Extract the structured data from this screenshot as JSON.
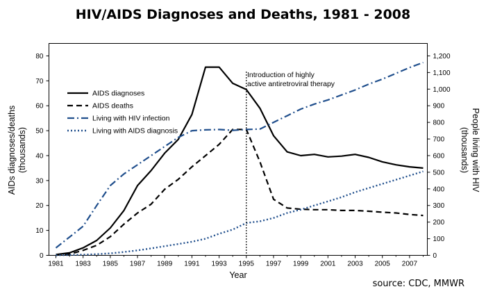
{
  "chart_data": {
    "type": "line",
    "title": "HIV/AIDS Diagnoses and Deaths, 1981 - 2008",
    "xlabel": "Year",
    "ylabel_left": [
      "AIDs diagnoses/deaths",
      "(thousands)"
    ],
    "ylabel_right": [
      "People living with HIV",
      "(thousands)"
    ],
    "x": [
      1981,
      1982,
      1983,
      1984,
      1985,
      1986,
      1987,
      1988,
      1989,
      1990,
      1991,
      1992,
      1993,
      1994,
      1995,
      1996,
      1997,
      1998,
      1999,
      2000,
      2001,
      2002,
      2003,
      2004,
      2005,
      2006,
      2007,
      2008
    ],
    "xlim": [
      1981,
      2008.5
    ],
    "ylim_left": [
      0,
      85
    ],
    "ylim_right": [
      0,
      1275
    ],
    "x_ticks": [
      "1981",
      "1983",
      "1985",
      "1987",
      "1989",
      "1991",
      "1993",
      "1995",
      "1997",
      "1999",
      "2001",
      "2003",
      "2005",
      "2007"
    ],
    "y_ticks_left": [
      "0",
      "10",
      "20",
      "30",
      "40",
      "50",
      "60",
      "70",
      "80"
    ],
    "y_ticks_right": [
      "0",
      "100",
      "200",
      "300",
      "400",
      "500",
      "600",
      "700",
      "800",
      "900",
      "1,000",
      "1,100",
      "1,200"
    ],
    "series": [
      {
        "name": "AIDS diagnoses",
        "axis": "left",
        "style": "solid",
        "color": "#000000",
        "values": [
          0.3,
          1,
          3,
          6,
          11,
          18,
          28,
          34,
          41,
          46.5,
          56.5,
          75.5,
          75.5,
          69,
          66.5,
          59,
          48,
          41.5,
          40,
          40.5,
          39.5,
          39.8,
          40.5,
          39.3,
          37.5,
          36.3,
          35.5,
          35
        ]
      },
      {
        "name": "AIDS deaths",
        "axis": "left",
        "style": "dashed",
        "color": "#000000",
        "values": [
          0.1,
          0.5,
          2,
          4,
          7.5,
          12.5,
          17,
          20.5,
          26.5,
          30.5,
          35.5,
          40,
          44.5,
          50.5,
          50.5,
          37.5,
          22.5,
          19,
          18.5,
          18.3,
          18.3,
          18,
          18,
          17.7,
          17.3,
          17,
          16.4,
          16
        ]
      },
      {
        "name": "Living with HIV infection",
        "axis": "right",
        "style": "dash-dot",
        "color": "#1f4e8c",
        "values": [
          45,
          110,
          175,
          300,
          420,
          490,
          545,
          600,
          655,
          710,
          750,
          755,
          757,
          752,
          757,
          760,
          800,
          840,
          880,
          910,
          935,
          965,
          995,
          1030,
          1060,
          1095,
          1130,
          1160
        ]
      },
      {
        "name": "Living with AIDS diagnosis",
        "axis": "right",
        "style": "dotted",
        "color": "#1f4e8c",
        "values": [
          1,
          2,
          4,
          7,
          12,
          20,
          30,
          42,
          55,
          68,
          82,
          100,
          130,
          155,
          195,
          205,
          225,
          255,
          275,
          300,
          325,
          350,
          380,
          405,
          430,
          455,
          480,
          505
        ]
      }
    ],
    "annotation": {
      "x": 1995,
      "lines": [
        "Introduction of highly",
        "active antiretroviral therapy"
      ]
    },
    "source": "source: CDC, MMWR",
    "legend_position": "top-left",
    "grid": false
  }
}
